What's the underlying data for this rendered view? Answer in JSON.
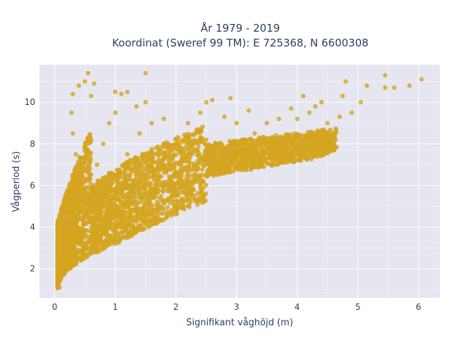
{
  "chart_data": {
    "type": "scatter",
    "title_lines": [
      "År 1979 - 2019",
      "Koordinat (Sweref 99 TM): E 725368, N 6600308"
    ],
    "xlabel": "Signifikant våghöjd (m)",
    "ylabel": "Vågperiod (s)",
    "xlim": [
      -0.25,
      6.35
    ],
    "ylim": [
      0.6,
      11.8
    ],
    "xticks": [
      0,
      1,
      2,
      3,
      4,
      5,
      6
    ],
    "yticks": [
      2,
      4,
      6,
      8,
      10
    ],
    "grid": true,
    "legend": "none",
    "colors": {
      "marker": "#d4a520",
      "plot_bg": "#e5e6f0",
      "grid": "#ffffff",
      "text": "#2a3f5f"
    },
    "series": [
      {
        "points": [
          [
            0.08,
            1.1
          ],
          [
            0.1,
            1.5
          ],
          [
            0.12,
            2.0
          ],
          [
            0.15,
            2.5
          ],
          [
            0.1,
            3.0
          ],
          [
            0.08,
            3.6
          ],
          [
            0.12,
            4.2
          ],
          [
            0.15,
            5.0
          ],
          [
            0.2,
            5.5
          ],
          [
            0.2,
            3.0
          ],
          [
            0.25,
            3.5
          ],
          [
            0.3,
            4.0
          ],
          [
            0.3,
            6.5
          ],
          [
            0.35,
            7.5
          ],
          [
            0.3,
            8.5
          ],
          [
            0.28,
            9.5
          ],
          [
            0.3,
            10.4
          ],
          [
            0.4,
            10.8
          ],
          [
            0.5,
            11.0
          ],
          [
            0.55,
            11.4
          ],
          [
            0.6,
            10.3
          ],
          [
            0.5,
            8.0
          ],
          [
            0.45,
            6.0
          ],
          [
            0.4,
            4.5
          ],
          [
            0.5,
            3.5
          ],
          [
            0.6,
            3.8
          ],
          [
            0.7,
            4.5
          ],
          [
            0.8,
            5.0
          ],
          [
            0.9,
            4.0
          ],
          [
            1.0,
            4.8
          ],
          [
            1.1,
            5.2
          ],
          [
            1.2,
            5.6
          ],
          [
            1.3,
            5.5
          ],
          [
            1.5,
            6.0
          ],
          [
            1.7,
            6.3
          ],
          [
            2.0,
            6.6
          ],
          [
            2.3,
            7.0
          ],
          [
            2.5,
            7.1
          ],
          [
            3.0,
            7.5
          ],
          [
            3.3,
            7.8
          ],
          [
            3.8,
            8.0
          ],
          [
            0.7,
            7.0
          ],
          [
            0.8,
            8.0
          ],
          [
            0.9,
            9.0
          ],
          [
            1.0,
            9.5
          ],
          [
            1.1,
            10.4
          ],
          [
            1.0,
            10.5
          ],
          [
            1.2,
            10.5
          ],
          [
            1.5,
            10.0
          ],
          [
            1.5,
            11.4
          ],
          [
            1.2,
            7.5
          ],
          [
            1.4,
            8.5
          ],
          [
            1.6,
            9.0
          ],
          [
            1.8,
            9.2
          ],
          [
            2.0,
            8.0
          ],
          [
            2.2,
            9.0
          ],
          [
            2.4,
            9.5
          ],
          [
            2.5,
            10.0
          ],
          [
            2.6,
            10.1
          ],
          [
            2.8,
            9.3
          ],
          [
            2.5,
            8.2
          ],
          [
            3.0,
            9.0
          ],
          [
            3.2,
            9.6
          ],
          [
            3.5,
            9.0
          ],
          [
            3.3,
            8.5
          ],
          [
            3.7,
            9.2
          ],
          [
            4.0,
            9.2
          ],
          [
            4.1,
            10.3
          ],
          [
            4.2,
            9.5
          ],
          [
            4.3,
            9.8
          ],
          [
            4.5,
            9.0
          ],
          [
            4.7,
            9.3
          ],
          [
            4.9,
            9.5
          ],
          [
            5.05,
            10.0
          ],
          [
            4.75,
            10.3
          ],
          [
            4.8,
            11.0
          ],
          [
            5.15,
            10.8
          ],
          [
            5.45,
            11.3
          ],
          [
            5.45,
            10.7
          ],
          [
            5.6,
            10.7
          ],
          [
            5.85,
            10.8
          ],
          [
            6.05,
            11.1
          ],
          [
            2.7,
            8.0
          ],
          [
            1.8,
            7.0
          ],
          [
            1.6,
            6.8
          ],
          [
            2.2,
            7.5
          ],
          [
            2.0,
            5.5
          ],
          [
            1.0,
            3.8
          ],
          [
            0.6,
            2.8
          ],
          [
            0.4,
            2.5
          ],
          [
            0.3,
            2.2
          ],
          [
            0.35,
            2.6
          ],
          [
            3.9,
            9.7
          ],
          [
            4.4,
            10.0
          ],
          [
            0.65,
            10.9
          ],
          [
            1.35,
            9.8
          ],
          [
            2.9,
            10.2
          ]
        ]
      }
    ]
  }
}
